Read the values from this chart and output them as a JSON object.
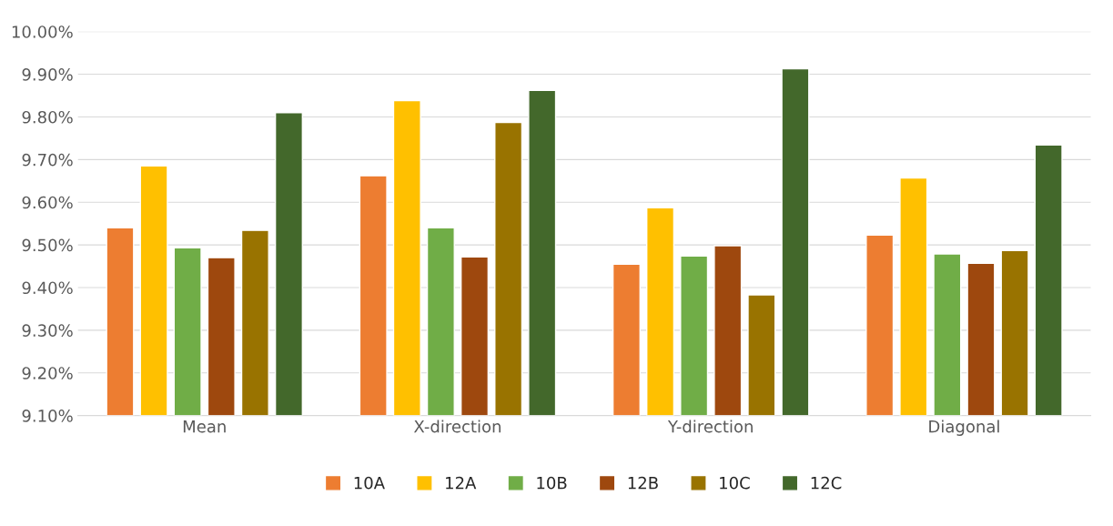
{
  "chart_data": {
    "type": "bar",
    "categories": [
      "Mean",
      "X-direction",
      "Y-direction",
      "Diagonal"
    ],
    "series": [
      {
        "name": "10A",
        "color": "#ed7d31",
        "values": [
          9.54,
          9.662,
          9.455,
          9.523
        ]
      },
      {
        "name": "12A",
        "color": "#ffc000",
        "values": [
          9.685,
          9.838,
          9.587,
          9.657
        ]
      },
      {
        "name": "10B",
        "color": "#70ad47",
        "values": [
          9.493,
          9.54,
          9.474,
          9.479
        ]
      },
      {
        "name": "12B",
        "color": "#9e480e",
        "values": [
          9.47,
          9.472,
          9.498,
          9.457
        ]
      },
      {
        "name": "10C",
        "color": "#997300",
        "values": [
          9.534,
          9.787,
          9.383,
          9.487
        ]
      },
      {
        "name": "12C",
        "color": "#43682b",
        "values": [
          9.81,
          9.862,
          9.913,
          9.734
        ]
      }
    ],
    "ylim": [
      9.1,
      10.0
    ],
    "yticks": [
      {
        "value": 9.1,
        "label": "9.10%"
      },
      {
        "value": 9.2,
        "label": "9.20%"
      },
      {
        "value": 9.3,
        "label": "9.30%"
      },
      {
        "value": 9.4,
        "label": "9.40%"
      },
      {
        "value": 9.5,
        "label": "9.50%"
      },
      {
        "value": 9.6,
        "label": "9.60%"
      },
      {
        "value": 9.7,
        "label": "9.70%"
      },
      {
        "value": 9.8,
        "label": "9.80%"
      },
      {
        "value": 9.9,
        "label": "9.90%"
      },
      {
        "value": 10.0,
        "label": "10.00%"
      }
    ],
    "grid": "y",
    "legend": "bottom"
  }
}
